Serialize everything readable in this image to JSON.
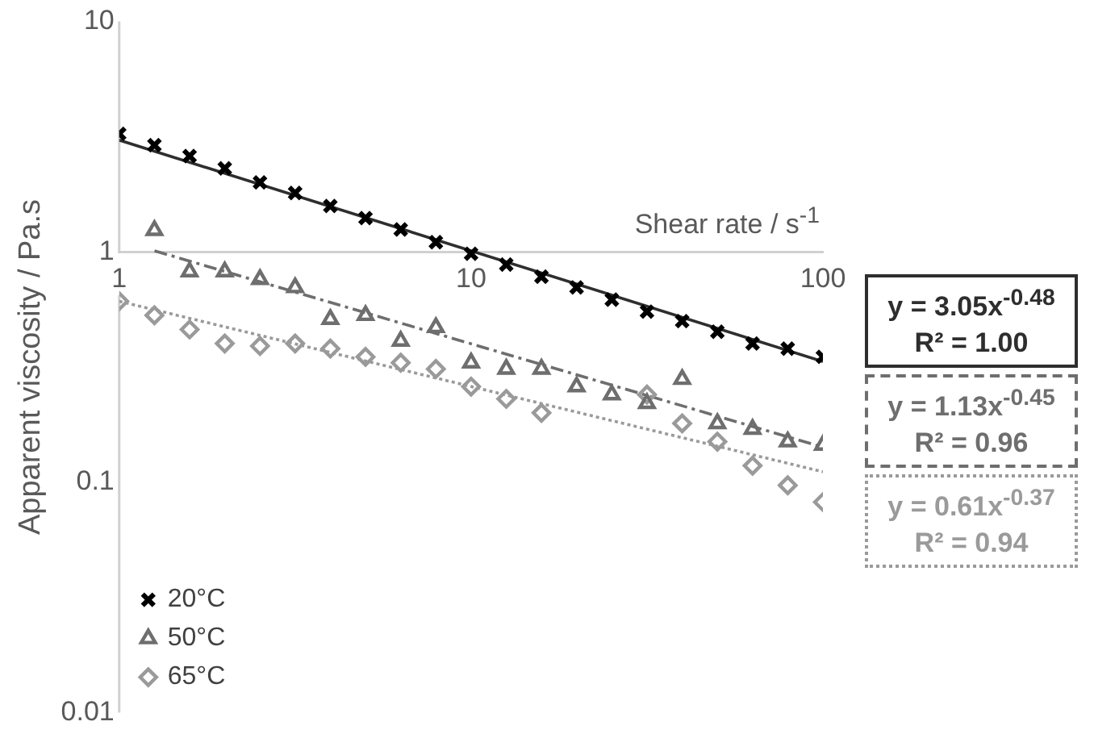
{
  "chart_data": {
    "type": "scatter",
    "xlabel": "Shear rate / s$^{-1}$",
    "ylabel": "Apparent viscosity / Pa.s",
    "log": "xy",
    "xlim": [
      1,
      100
    ],
    "ylim": [
      0.01,
      10
    ],
    "xticks": [
      1,
      10,
      100
    ],
    "yticks": [
      0.01,
      0.1,
      1,
      10
    ],
    "grid": false,
    "legend": "bottom left",
    "x": [
      1,
      1.259,
      1.585,
      1.995,
      2.512,
      3.162,
      3.981,
      5.012,
      6.31,
      7.943,
      10,
      12.59,
      15.85,
      19.95,
      25.12,
      31.62,
      39.81,
      50.12,
      63.1,
      79.43,
      100
    ],
    "series": [
      {
        "name": "20°C",
        "color": "#000000",
        "marker": "cross",
        "values": [
          3.25,
          2.9,
          2.6,
          2.3,
          2.0,
          1.8,
          1.58,
          1.4,
          1.25,
          1.1,
          0.98,
          0.88,
          0.78,
          0.7,
          0.62,
          0.55,
          0.5,
          0.45,
          0.4,
          0.38,
          0.35
        ]
      },
      {
        "name": "50°C",
        "color": "#6e6e6e",
        "marker": "triangle",
        "values": [
          null,
          1.24,
          0.82,
          0.82,
          0.76,
          0.7,
          0.51,
          0.53,
          0.41,
          0.47,
          0.33,
          0.31,
          0.31,
          0.26,
          0.24,
          0.22,
          0.28,
          0.18,
          0.17,
          0.15,
          0.145
        ]
      },
      {
        "name": "65°C",
        "color": "#9a9a9a",
        "marker": "diamond",
        "values": [
          0.61,
          0.53,
          0.46,
          0.4,
          0.39,
          0.4,
          0.38,
          0.35,
          0.33,
          0.31,
          0.26,
          0.23,
          0.2,
          null,
          null,
          0.24,
          0.18,
          0.15,
          0.118,
          0.097,
          0.082
        ]
      },
      {
        "type": "line",
        "color": "#2e2e2e",
        "line_style": "solid",
        "marker": "none",
        "x": [
          1,
          100
        ],
        "values": [
          3.05,
          0.334
        ]
      },
      {
        "type": "line",
        "color": "#6e6e6e",
        "line_style": "dashed",
        "marker": "none",
        "x": [
          1.26,
          100
        ],
        "values": [
          1.01,
          0.142
        ]
      },
      {
        "type": "line",
        "color": "#9a9a9a",
        "line_style": "dotted",
        "marker": "none",
        "x": [
          1,
          100
        ],
        "values": [
          0.61,
          0.111
        ]
      }
    ],
    "annotations": [
      "y = 3.05x$^{-0.48}$",
      "R² = 1.00",
      "y = 1.13x$^{-0.45}$",
      "R² = 0.96",
      "y = 0.61x$^{-0.37}$",
      "R² = 0.94"
    ]
  }
}
